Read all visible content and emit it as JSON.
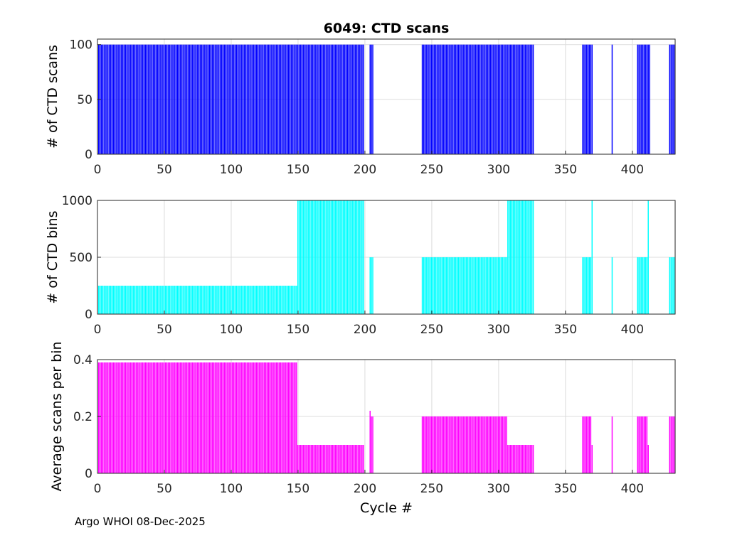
{
  "figure_title": "6049: CTD scans",
  "xlabel": "Cycle #",
  "credit": "Argo WHOI 08-Dec-2025",
  "chart_data": [
    {
      "type": "bar",
      "name": "scans",
      "title": "6049: CTD scans",
      "ylabel": "# of CTD scans",
      "xlabel": "",
      "color": "#0000ff",
      "xlim": [
        0,
        432
      ],
      "ylim": [
        0,
        105
      ],
      "xticks": [
        0,
        50,
        100,
        150,
        200,
        250,
        300,
        350,
        400
      ],
      "yticks": [
        0,
        50,
        100
      ],
      "segments": [
        {
          "x_start": 1,
          "x_end": 199,
          "step": 1,
          "value": 100
        },
        {
          "x_start": 204,
          "x_end": 206,
          "step": 1,
          "value": 100
        },
        {
          "x_start": 243,
          "x_end": 326,
          "step": 1,
          "value": 100
        },
        {
          "x_start": 363,
          "x_end": 370,
          "step": 1,
          "value": 100
        },
        {
          "x_start": 385,
          "x_end": 385,
          "step": 1,
          "value": 100
        },
        {
          "x_start": 404,
          "x_end": 413,
          "step": 1,
          "value": 100
        },
        {
          "x_start": 428,
          "x_end": 432,
          "step": 1,
          "value": 100
        }
      ]
    },
    {
      "type": "bar",
      "name": "bins",
      "title": "",
      "ylabel": "# of CTD bins",
      "xlabel": "",
      "color": "#00ffff",
      "xlim": [
        0,
        432
      ],
      "ylim": [
        0,
        1000
      ],
      "xticks": [
        0,
        50,
        100,
        150,
        200,
        250,
        300,
        350,
        400
      ],
      "yticks": [
        0,
        500,
        1000
      ],
      "segments": [
        {
          "x_start": 1,
          "x_end": 149,
          "step": 1,
          "value": 250
        },
        {
          "x_start": 150,
          "x_end": 199,
          "step": 1,
          "value": 1000
        },
        {
          "x_start": 204,
          "x_end": 206,
          "step": 1,
          "value": 500
        },
        {
          "x_start": 243,
          "x_end": 306,
          "step": 1,
          "value": 500
        },
        {
          "x_start": 307,
          "x_end": 326,
          "step": 1,
          "value": 1000
        },
        {
          "x_start": 363,
          "x_end": 369,
          "step": 1,
          "value": 500
        },
        {
          "x_start": 370,
          "x_end": 370,
          "step": 1,
          "value": 1000
        },
        {
          "x_start": 385,
          "x_end": 385,
          "step": 1,
          "value": 500
        },
        {
          "x_start": 404,
          "x_end": 411,
          "step": 1,
          "value": 500
        },
        {
          "x_start": 412,
          "x_end": 412,
          "step": 1,
          "value": 1000
        },
        {
          "x_start": 428,
          "x_end": 432,
          "step": 1,
          "value": 500
        }
      ]
    },
    {
      "type": "bar",
      "name": "ratio",
      "title": "",
      "ylabel": "Average scans per bin",
      "xlabel": "Cycle #",
      "color": "#ff00ff",
      "xlim": [
        0,
        432
      ],
      "ylim": [
        0,
        0.4
      ],
      "xticks": [
        0,
        50,
        100,
        150,
        200,
        250,
        300,
        350,
        400
      ],
      "yticks": [
        0,
        0.2,
        0.4
      ],
      "segments": [
        {
          "x_start": 1,
          "x_end": 149,
          "step": 1,
          "value": 0.39
        },
        {
          "x_start": 150,
          "x_end": 199,
          "step": 1,
          "value": 0.1
        },
        {
          "x_start": 204,
          "x_end": 204,
          "step": 1,
          "value": 0.22
        },
        {
          "x_start": 205,
          "x_end": 206,
          "step": 1,
          "value": 0.2
        },
        {
          "x_start": 243,
          "x_end": 306,
          "step": 1,
          "value": 0.2
        },
        {
          "x_start": 307,
          "x_end": 326,
          "step": 1,
          "value": 0.1
        },
        {
          "x_start": 363,
          "x_end": 369,
          "step": 1,
          "value": 0.2
        },
        {
          "x_start": 370,
          "x_end": 370,
          "step": 1,
          "value": 0.1
        },
        {
          "x_start": 385,
          "x_end": 385,
          "step": 1,
          "value": 0.2
        },
        {
          "x_start": 404,
          "x_end": 411,
          "step": 1,
          "value": 0.2
        },
        {
          "x_start": 412,
          "x_end": 412,
          "step": 1,
          "value": 0.1
        },
        {
          "x_start": 428,
          "x_end": 432,
          "step": 1,
          "value": 0.2
        }
      ]
    }
  ]
}
